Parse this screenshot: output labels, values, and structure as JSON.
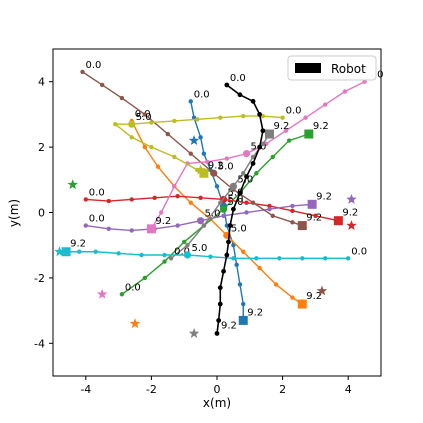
{
  "chart_data": {
    "type": "line",
    "xlabel": "x(m)",
    "ylabel": "y(m)",
    "xlim": [
      -5,
      5
    ],
    "ylim": [
      -5,
      5
    ],
    "xticks": [
      -4,
      -2,
      0,
      2,
      4
    ],
    "yticks": [
      -4,
      -2,
      0,
      2,
      4
    ],
    "grid": false,
    "legend": {
      "position": "top-right",
      "entries": [
        {
          "label": "Robot",
          "color": "#000000"
        }
      ]
    },
    "series": [
      {
        "color": "#1f77b4",
        "start_label": "0.0",
        "mid_label": "5.0",
        "end_label": "9.2",
        "goal": [
          -0.7,
          2.2
        ],
        "points": [
          [
            -0.8,
            3.4
          ],
          [
            -0.7,
            2.9
          ],
          [
            -0.5,
            2.3
          ],
          [
            -0.4,
            1.8
          ],
          [
            -0.2,
            1.3
          ],
          [
            0.0,
            0.8
          ],
          [
            0.2,
            0.2
          ],
          [
            0.3,
            -0.4
          ],
          [
            0.5,
            -1.0
          ],
          [
            0.6,
            -1.6
          ],
          [
            0.7,
            -2.2
          ],
          [
            0.8,
            -2.8
          ],
          [
            0.8,
            -3.3
          ]
        ]
      },
      {
        "color": "#ff7f0e",
        "start_label": "0.0",
        "mid_label": "5.0",
        "end_label": "9.2",
        "goal": [
          -2.5,
          -3.4
        ],
        "points": [
          [
            -2.6,
            2.8
          ],
          [
            -2.2,
            2.0
          ],
          [
            -1.8,
            1.4
          ],
          [
            -1.3,
            0.8
          ],
          [
            -0.8,
            0.3
          ],
          [
            -0.2,
            -0.2
          ],
          [
            0.3,
            -0.7
          ],
          [
            0.8,
            -1.2
          ],
          [
            1.3,
            -1.7
          ],
          [
            1.8,
            -2.2
          ],
          [
            2.3,
            -2.6
          ],
          [
            2.6,
            -2.8
          ]
        ]
      },
      {
        "color": "#2ca02c",
        "start_label": "0.0",
        "mid_label": "5.0",
        "end_label": "9.2",
        "goal": [
          -4.4,
          0.85
        ],
        "points": [
          [
            -2.9,
            -2.5
          ],
          [
            -2.2,
            -2.0
          ],
          [
            -1.6,
            -1.5
          ],
          [
            -1.0,
            -0.9
          ],
          [
            -0.4,
            -0.4
          ],
          [
            0.2,
            0.1
          ],
          [
            0.7,
            0.6
          ],
          [
            1.2,
            1.2
          ],
          [
            1.7,
            1.7
          ],
          [
            2.2,
            2.2
          ],
          [
            2.8,
            2.4
          ]
        ]
      },
      {
        "color": "#d62728",
        "start_label": "0.0",
        "mid_label": "5.0",
        "end_label": "9.2",
        "goal": [
          4.1,
          -0.4
        ],
        "points": [
          [
            -4.0,
            0.4
          ],
          [
            -3.3,
            0.35
          ],
          [
            -2.6,
            0.4
          ],
          [
            -1.9,
            0.45
          ],
          [
            -1.2,
            0.5
          ],
          [
            -0.5,
            0.45
          ],
          [
            0.2,
            0.4
          ],
          [
            0.9,
            0.3
          ],
          [
            1.6,
            0.2
          ],
          [
            2.3,
            0.05
          ],
          [
            3.0,
            -0.1
          ],
          [
            3.7,
            -0.25
          ]
        ]
      },
      {
        "color": "#9467bd",
        "start_label": "0.0",
        "mid_label": "5.0",
        "end_label": "9.2",
        "goal": [
          4.1,
          0.4
        ],
        "points": [
          [
            -4.0,
            -0.4
          ],
          [
            -3.3,
            -0.5
          ],
          [
            -2.6,
            -0.55
          ],
          [
            -1.9,
            -0.5
          ],
          [
            -1.2,
            -0.4
          ],
          [
            -0.5,
            -0.25
          ],
          [
            0.2,
            -0.1
          ],
          [
            0.9,
            0.0
          ],
          [
            1.6,
            0.1
          ],
          [
            2.3,
            0.2
          ],
          [
            2.9,
            0.25
          ]
        ]
      },
      {
        "color": "#8c564b",
        "start_label": "0.0",
        "mid_label": "5.0",
        "end_label": "9.2",
        "goal": [
          3.2,
          -2.4
        ],
        "points": [
          [
            -4.1,
            4.3
          ],
          [
            -3.5,
            3.9
          ],
          [
            -2.9,
            3.5
          ],
          [
            -2.2,
            3.0
          ],
          [
            -1.5,
            2.4
          ],
          [
            -0.8,
            1.8
          ],
          [
            -0.1,
            1.2
          ],
          [
            0.5,
            0.7
          ],
          [
            1.1,
            0.3
          ],
          [
            1.7,
            -0.1
          ],
          [
            2.3,
            -0.3
          ],
          [
            2.6,
            -0.4
          ]
        ]
      },
      {
        "color": "#e377c2",
        "start_label": "0.0",
        "mid_label": "5.0",
        "end_label": "9.2",
        "goal": [
          -3.5,
          -2.5
        ],
        "points": [
          [
            4.5,
            4.0
          ],
          [
            3.9,
            3.7
          ],
          [
            3.3,
            3.3
          ],
          [
            2.7,
            2.9
          ],
          [
            2.1,
            2.5
          ],
          [
            1.5,
            2.1
          ],
          [
            0.9,
            1.8
          ],
          [
            0.3,
            1.65
          ],
          [
            -0.3,
            1.55
          ],
          [
            -0.9,
            1.5
          ],
          [
            -1.3,
            0.8
          ],
          [
            -1.7,
            0.0
          ],
          [
            -2.0,
            -0.5
          ]
        ]
      },
      {
        "color": "#7f7f7f",
        "start_label": "0.0",
        "mid_label": "5.0",
        "end_label": "9.2",
        "goal": [
          -0.7,
          -3.7
        ],
        "points": [
          [
            -1.4,
            -1.4
          ],
          [
            -0.9,
            -1.0
          ],
          [
            -0.4,
            -0.4
          ],
          [
            0.1,
            0.3
          ],
          [
            0.5,
            0.8
          ],
          [
            0.8,
            1.2
          ],
          [
            1.1,
            1.7
          ],
          [
            1.4,
            2.1
          ],
          [
            1.6,
            2.4
          ]
        ]
      },
      {
        "color": "#bcbd22",
        "start_label": "0.0",
        "mid_label": "5.0",
        "end_label": "9.2",
        "goal": [
          -0.5,
          1.3
        ],
        "points": [
          [
            2.0,
            2.9
          ],
          [
            1.4,
            2.95
          ],
          [
            0.8,
            2.95
          ],
          [
            0.1,
            2.9
          ],
          [
            -0.6,
            2.85
          ],
          [
            -1.3,
            2.8
          ],
          [
            -2.0,
            2.75
          ],
          [
            -2.6,
            2.7
          ],
          [
            -3.1,
            2.7
          ],
          [
            -2.6,
            2.3
          ],
          [
            -2.0,
            2.0
          ],
          [
            -1.3,
            1.7
          ],
          [
            -0.6,
            1.3
          ],
          [
            -0.4,
            1.2
          ]
        ]
      },
      {
        "color": "#17becf",
        "start_label": "0.0",
        "mid_label": "5.0",
        "end_label": "9.2",
        "goal": [
          -4.8,
          -1.2
        ],
        "points": [
          [
            4.0,
            -1.4
          ],
          [
            3.3,
            -1.4
          ],
          [
            2.6,
            -1.4
          ],
          [
            1.9,
            -1.4
          ],
          [
            1.2,
            -1.4
          ],
          [
            0.5,
            -1.4
          ],
          [
            -0.2,
            -1.35
          ],
          [
            -0.9,
            -1.3
          ],
          [
            -1.6,
            -1.3
          ],
          [
            -2.3,
            -1.3
          ],
          [
            -3.0,
            -1.25
          ],
          [
            -3.7,
            -1.2
          ],
          [
            -4.2,
            -1.2
          ],
          [
            -4.6,
            -1.2
          ]
        ]
      }
    ],
    "robot": {
      "color": "#000000",
      "start_label": "0.0",
      "end_label": "9.2",
      "points": [
        [
          0.3,
          3.9
        ],
        [
          0.7,
          3.6
        ],
        [
          1.1,
          3.4
        ],
        [
          1.3,
          3.0
        ],
        [
          1.4,
          2.5
        ],
        [
          1.3,
          2.0
        ],
        [
          1.1,
          1.5
        ],
        [
          0.9,
          1.1
        ],
        [
          0.7,
          0.6
        ],
        [
          0.5,
          0.1
        ],
        [
          0.4,
          -0.4
        ],
        [
          0.35,
          -0.9
        ],
        [
          0.3,
          -1.3
        ],
        [
          0.2,
          -1.8
        ],
        [
          0.1,
          -2.3
        ],
        [
          0.1,
          -2.8
        ],
        [
          0.05,
          -3.3
        ],
        [
          0.0,
          -3.7
        ]
      ]
    }
  }
}
